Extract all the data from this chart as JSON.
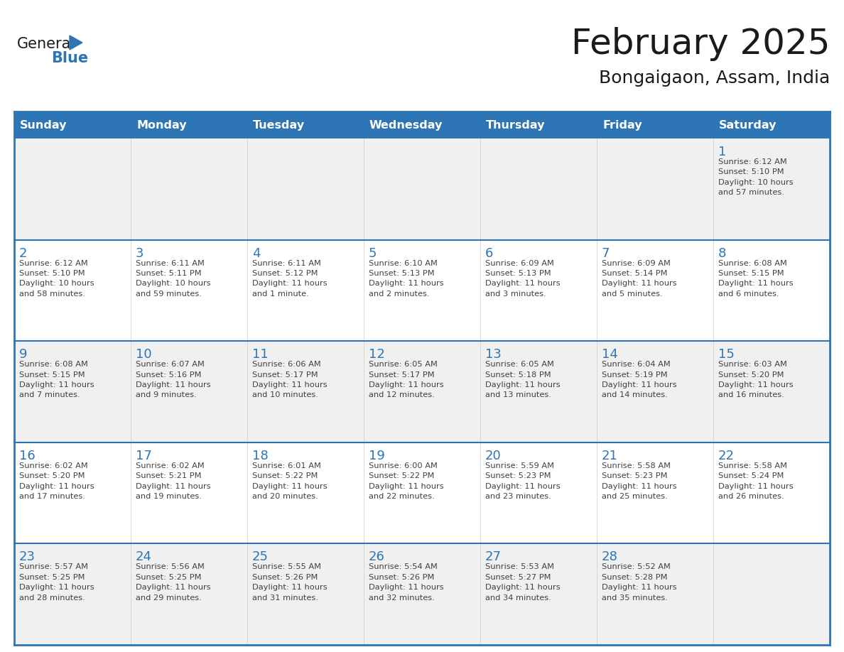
{
  "title": "February 2025",
  "subtitle": "Bongaigaon, Assam, India",
  "header_bg": "#2E75B6",
  "header_text_color": "#FFFFFF",
  "cell_bg_white": "#FFFFFF",
  "cell_bg_gray": "#F0F0F0",
  "border_color": "#2E75B6",
  "title_color": "#1A1A1A",
  "subtitle_color": "#1A1A1A",
  "day_number_color": "#2E75B6",
  "cell_text_color": "#404040",
  "days_of_week": [
    "Sunday",
    "Monday",
    "Tuesday",
    "Wednesday",
    "Thursday",
    "Friday",
    "Saturday"
  ],
  "weeks": [
    [
      {
        "day": null,
        "info": null
      },
      {
        "day": null,
        "info": null
      },
      {
        "day": null,
        "info": null
      },
      {
        "day": null,
        "info": null
      },
      {
        "day": null,
        "info": null
      },
      {
        "day": null,
        "info": null
      },
      {
        "day": 1,
        "info": "Sunrise: 6:12 AM\nSunset: 5:10 PM\nDaylight: 10 hours\nand 57 minutes."
      }
    ],
    [
      {
        "day": 2,
        "info": "Sunrise: 6:12 AM\nSunset: 5:10 PM\nDaylight: 10 hours\nand 58 minutes."
      },
      {
        "day": 3,
        "info": "Sunrise: 6:11 AM\nSunset: 5:11 PM\nDaylight: 10 hours\nand 59 minutes."
      },
      {
        "day": 4,
        "info": "Sunrise: 6:11 AM\nSunset: 5:12 PM\nDaylight: 11 hours\nand 1 minute."
      },
      {
        "day": 5,
        "info": "Sunrise: 6:10 AM\nSunset: 5:13 PM\nDaylight: 11 hours\nand 2 minutes."
      },
      {
        "day": 6,
        "info": "Sunrise: 6:09 AM\nSunset: 5:13 PM\nDaylight: 11 hours\nand 3 minutes."
      },
      {
        "day": 7,
        "info": "Sunrise: 6:09 AM\nSunset: 5:14 PM\nDaylight: 11 hours\nand 5 minutes."
      },
      {
        "day": 8,
        "info": "Sunrise: 6:08 AM\nSunset: 5:15 PM\nDaylight: 11 hours\nand 6 minutes."
      }
    ],
    [
      {
        "day": 9,
        "info": "Sunrise: 6:08 AM\nSunset: 5:15 PM\nDaylight: 11 hours\nand 7 minutes."
      },
      {
        "day": 10,
        "info": "Sunrise: 6:07 AM\nSunset: 5:16 PM\nDaylight: 11 hours\nand 9 minutes."
      },
      {
        "day": 11,
        "info": "Sunrise: 6:06 AM\nSunset: 5:17 PM\nDaylight: 11 hours\nand 10 minutes."
      },
      {
        "day": 12,
        "info": "Sunrise: 6:05 AM\nSunset: 5:17 PM\nDaylight: 11 hours\nand 12 minutes."
      },
      {
        "day": 13,
        "info": "Sunrise: 6:05 AM\nSunset: 5:18 PM\nDaylight: 11 hours\nand 13 minutes."
      },
      {
        "day": 14,
        "info": "Sunrise: 6:04 AM\nSunset: 5:19 PM\nDaylight: 11 hours\nand 14 minutes."
      },
      {
        "day": 15,
        "info": "Sunrise: 6:03 AM\nSunset: 5:20 PM\nDaylight: 11 hours\nand 16 minutes."
      }
    ],
    [
      {
        "day": 16,
        "info": "Sunrise: 6:02 AM\nSunset: 5:20 PM\nDaylight: 11 hours\nand 17 minutes."
      },
      {
        "day": 17,
        "info": "Sunrise: 6:02 AM\nSunset: 5:21 PM\nDaylight: 11 hours\nand 19 minutes."
      },
      {
        "day": 18,
        "info": "Sunrise: 6:01 AM\nSunset: 5:22 PM\nDaylight: 11 hours\nand 20 minutes."
      },
      {
        "day": 19,
        "info": "Sunrise: 6:00 AM\nSunset: 5:22 PM\nDaylight: 11 hours\nand 22 minutes."
      },
      {
        "day": 20,
        "info": "Sunrise: 5:59 AM\nSunset: 5:23 PM\nDaylight: 11 hours\nand 23 minutes."
      },
      {
        "day": 21,
        "info": "Sunrise: 5:58 AM\nSunset: 5:23 PM\nDaylight: 11 hours\nand 25 minutes."
      },
      {
        "day": 22,
        "info": "Sunrise: 5:58 AM\nSunset: 5:24 PM\nDaylight: 11 hours\nand 26 minutes."
      }
    ],
    [
      {
        "day": 23,
        "info": "Sunrise: 5:57 AM\nSunset: 5:25 PM\nDaylight: 11 hours\nand 28 minutes."
      },
      {
        "day": 24,
        "info": "Sunrise: 5:56 AM\nSunset: 5:25 PM\nDaylight: 11 hours\nand 29 minutes."
      },
      {
        "day": 25,
        "info": "Sunrise: 5:55 AM\nSunset: 5:26 PM\nDaylight: 11 hours\nand 31 minutes."
      },
      {
        "day": 26,
        "info": "Sunrise: 5:54 AM\nSunset: 5:26 PM\nDaylight: 11 hours\nand 32 minutes."
      },
      {
        "day": 27,
        "info": "Sunrise: 5:53 AM\nSunset: 5:27 PM\nDaylight: 11 hours\nand 34 minutes."
      },
      {
        "day": 28,
        "info": "Sunrise: 5:52 AM\nSunset: 5:28 PM\nDaylight: 11 hours\nand 35 minutes."
      },
      {
        "day": null,
        "info": null
      }
    ]
  ],
  "logo_general_color": "#1A1A1A",
  "logo_blue_color": "#2E75B6",
  "fig_width": 11.88,
  "fig_height": 9.18,
  "dpi": 100
}
